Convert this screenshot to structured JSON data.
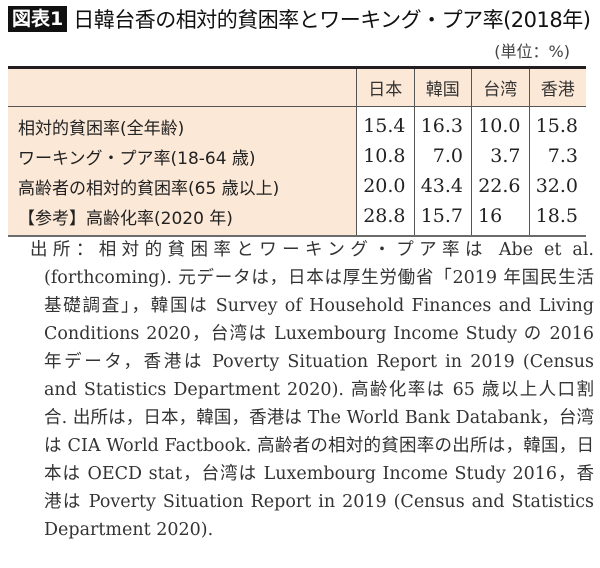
{
  "title": {
    "figure_label": "図表1",
    "text": "日韓台香の相対的貧困率とワーキング・プア率(2018年)"
  },
  "unit_label": "(単位：%)",
  "chart_data": {
    "type": "table",
    "title": "日韓台香の相対的貧困率とワーキング・プア率(2018年)",
    "unit": "%",
    "columns": [
      "日本",
      "韓国",
      "台湾",
      "香港"
    ],
    "rows": [
      {
        "label": "相対的貧困率(全年齢)",
        "values": [
          "15.4",
          "16.3",
          "10.0",
          "15.8"
        ]
      },
      {
        "label": "ワーキング・プア率(18-64 歳)",
        "values": [
          "10.8",
          "7.0",
          "3.7",
          "7.3"
        ]
      },
      {
        "label": "高齢者の相対的貧困率(65 歳以上)",
        "values": [
          "20.0",
          "43.4",
          "22.6",
          "32.0"
        ]
      },
      {
        "label": "【参考】高齢化率(2020 年)",
        "values": [
          "28.8",
          "15.7",
          "16",
          "18.5"
        ]
      }
    ]
  },
  "table": {
    "headers": [
      "",
      "日本",
      "韓国",
      "台湾",
      "香港"
    ],
    "rows": [
      {
        "label": "相対的貧困率(全年齢)",
        "c0": "15.4",
        "c1": "16.3",
        "c2": "10.0",
        "c3": "15.8"
      },
      {
        "label": "ワーキング・プア率(18-64 歳)",
        "c0": "10.8",
        "c1": "7.0",
        "c2": "3.7",
        "c3": "7.3"
      },
      {
        "label": "高齢者の相対的貧困率(65 歳以上)",
        "c0": "20.0",
        "c1": "43.4",
        "c2": "22.6",
        "c3": "32.0"
      },
      {
        "label": "【参考】高齢化率(2020 年)",
        "c0": "28.8",
        "c1": "15.7",
        "c2": "16",
        "c3": "18.5"
      }
    ]
  },
  "note": "出所：相対的貧困率とワーキング・プア率は Abe et al. (forthcoming). 元データは，日本は厚生労働省「2019 年国民生活基礎調査」，韓国は Survey of Household Finances and Living Conditions 2020，台湾は Luxembourg Income Study の 2016 年データ，香港は Poverty Situation Report in 2019 (Census and Statistics Department 2020). 高齢化率は 65 歳以上人口割合. 出所は，日本，韓国，香港は The World Bank Databank，台湾は CIA World Factbook. 高齢者の相対的貧困率の出所は，韓国，日本は OECD stat，台湾は Luxembourg Income Study 2016，香港は Poverty Situation Report in 2019 (Census and Statistics Department 2020).",
  "colors": {
    "header_bg": "#fbe8d7",
    "label_bg": "#fbe8d7",
    "figure_label_bg": "#111111",
    "rule": "#231f20"
  }
}
